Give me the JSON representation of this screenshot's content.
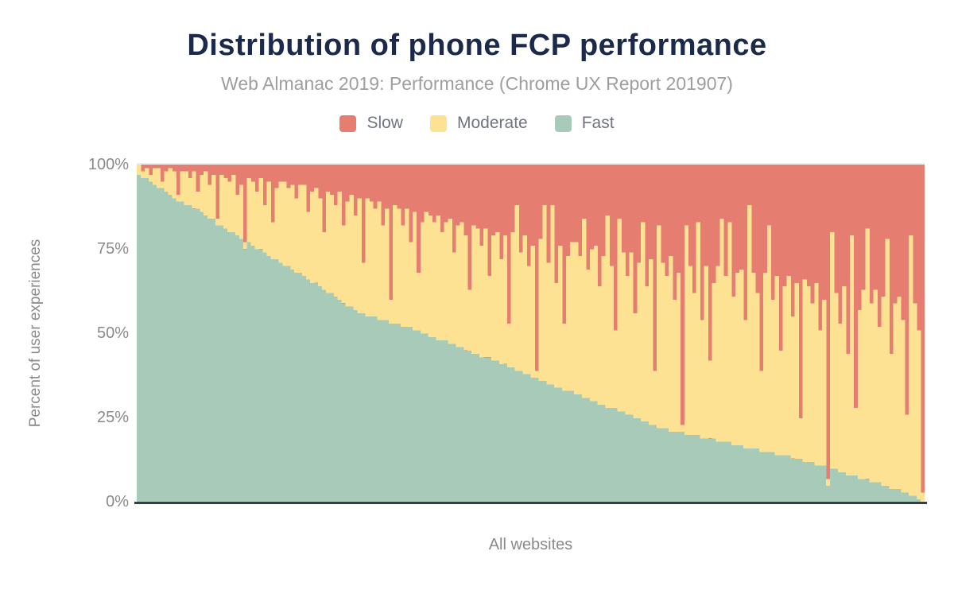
{
  "header": {
    "title": "Distribution of phone FCP performance",
    "subtitle": "Web Almanac 2019: Performance (Chrome UX Report 201907)"
  },
  "chart_data": {
    "type": "bar",
    "stacked": true,
    "stack_total_percent": 100,
    "title": "Distribution of phone FCP performance",
    "subtitle": "Web Almanac 2019: Performance (Chrome UX Report 201907)",
    "xlabel": "All websites",
    "ylabel": "Percent of user experiences",
    "ylim": [
      0,
      100
    ],
    "yticks": [
      "0%",
      "25%",
      "50%",
      "75%",
      "100%"
    ],
    "grid": "top 100% line only",
    "x_axis_note": "one stacked column per website, sorted by descending fast share; tick labels hidden",
    "n_columns": 200,
    "legend": {
      "position": "top",
      "items": [
        {
          "label": "Slow",
          "color": "#e57e70"
        },
        {
          "label": "Moderate",
          "color": "#fde293"
        },
        {
          "label": "Fast",
          "color": "#a8cab9"
        }
      ]
    },
    "series": [
      {
        "name": "Fast",
        "color": "#a8cab9",
        "values": [
          97,
          96,
          96,
          95,
          94,
          93,
          93,
          92,
          91,
          90,
          89,
          89,
          88,
          88,
          87,
          87,
          86,
          85,
          84,
          84,
          82,
          82,
          81,
          80,
          80,
          79,
          78,
          75,
          77,
          76,
          75,
          75,
          74,
          73,
          72,
          72,
          71,
          70,
          70,
          69,
          68,
          68,
          67,
          66,
          65,
          65,
          64,
          63,
          62,
          62,
          61,
          60,
          59,
          58,
          58,
          57,
          56,
          56,
          55,
          55,
          55,
          54,
          54,
          54,
          53,
          53,
          53,
          52,
          52,
          52,
          51,
          51,
          50,
          50,
          49,
          49,
          48,
          48,
          48,
          47,
          47,
          46,
          46,
          45,
          45,
          44,
          44,
          43,
          43,
          43,
          42,
          42,
          41,
          41,
          40,
          40,
          39,
          39,
          38,
          38,
          37,
          37,
          36,
          36,
          35,
          35,
          34,
          34,
          33,
          33,
          33,
          32,
          32,
          31,
          31,
          30,
          30,
          29,
          29,
          28,
          28,
          28,
          27,
          27,
          26,
          26,
          25,
          25,
          24,
          24,
          23,
          23,
          22,
          22,
          22,
          21,
          21,
          21,
          21,
          20,
          20,
          20,
          20,
          19,
          19,
          19,
          19,
          18,
          18,
          18,
          18,
          17,
          17,
          17,
          16,
          16,
          16,
          16,
          15,
          15,
          15,
          15,
          14,
          14,
          14,
          14,
          13,
          13,
          13,
          12,
          12,
          12,
          11,
          11,
          11,
          5,
          10,
          10,
          9,
          9,
          8,
          8,
          8,
          7,
          7,
          7,
          6,
          6,
          6,
          5,
          5,
          4,
          4,
          4,
          3,
          3,
          2,
          2,
          1,
          0
        ]
      },
      {
        "name": "Moderate",
        "color": "#fde293",
        "values": [
          3,
          2,
          3,
          2,
          5,
          6,
          2,
          6,
          8,
          8,
          2,
          9,
          10,
          8,
          11,
          5,
          11,
          13,
          10,
          13,
          2,
          15,
          15,
          15,
          17,
          12,
          16,
          2,
          19,
          19,
          17,
          21,
          14,
          22,
          11,
          21,
          24,
          25,
          23,
          25,
          22,
          26,
          27,
          20,
          27,
          28,
          26,
          17,
          30,
          29,
          27,
          32,
          23,
          31,
          33,
          28,
          34,
          15,
          35,
          34,
          32,
          35,
          28,
          33,
          7,
          35,
          34,
          30,
          35,
          25,
          35,
          17,
          33,
          36,
          36,
          34,
          37,
          32,
          35,
          37,
          27,
          36,
          37,
          34,
          18,
          38,
          37,
          33,
          38,
          24,
          37,
          38,
          31,
          38,
          13,
          40,
          49,
          35,
          41,
          32,
          39,
          2,
          42,
          52,
          36,
          53,
          31,
          42,
          20,
          40,
          44,
          45,
          41,
          53,
          38,
          45,
          46,
          35,
          44,
          57,
          42,
          23,
          57,
          47,
          41,
          48,
          31,
          46,
          59,
          40,
          49,
          16,
          60,
          49,
          45,
          52,
          39,
          47,
          2,
          62,
          50,
          42,
          63,
          35,
          51,
          23,
          46,
          52,
          66,
          49,
          65,
          44,
          51,
          52,
          38,
          72,
          52,
          46,
          24,
          53,
          67,
          45,
          53,
          31,
          50,
          53,
          42,
          52,
          12,
          54,
          52,
          47,
          54,
          40,
          49,
          2,
          70,
          52,
          44,
          55,
          36,
          71,
          20,
          50,
          56,
          74,
          53,
          57,
          46,
          56,
          73,
          40,
          55,
          57,
          51,
          23,
          77,
          57,
          50,
          3
        ]
      },
      {
        "name": "Slow",
        "color": "#e57e70",
        "values_note": "remainder to 100% for each column (100 - fast - moderate)"
      }
    ]
  },
  "colors": {
    "title": "#1b2a4a",
    "subtitle": "#9e9e9e",
    "axis_text": "#8a8a8a",
    "axis_line": "#333d52",
    "top_gridline": "#ececec",
    "background": "#ffffff"
  }
}
